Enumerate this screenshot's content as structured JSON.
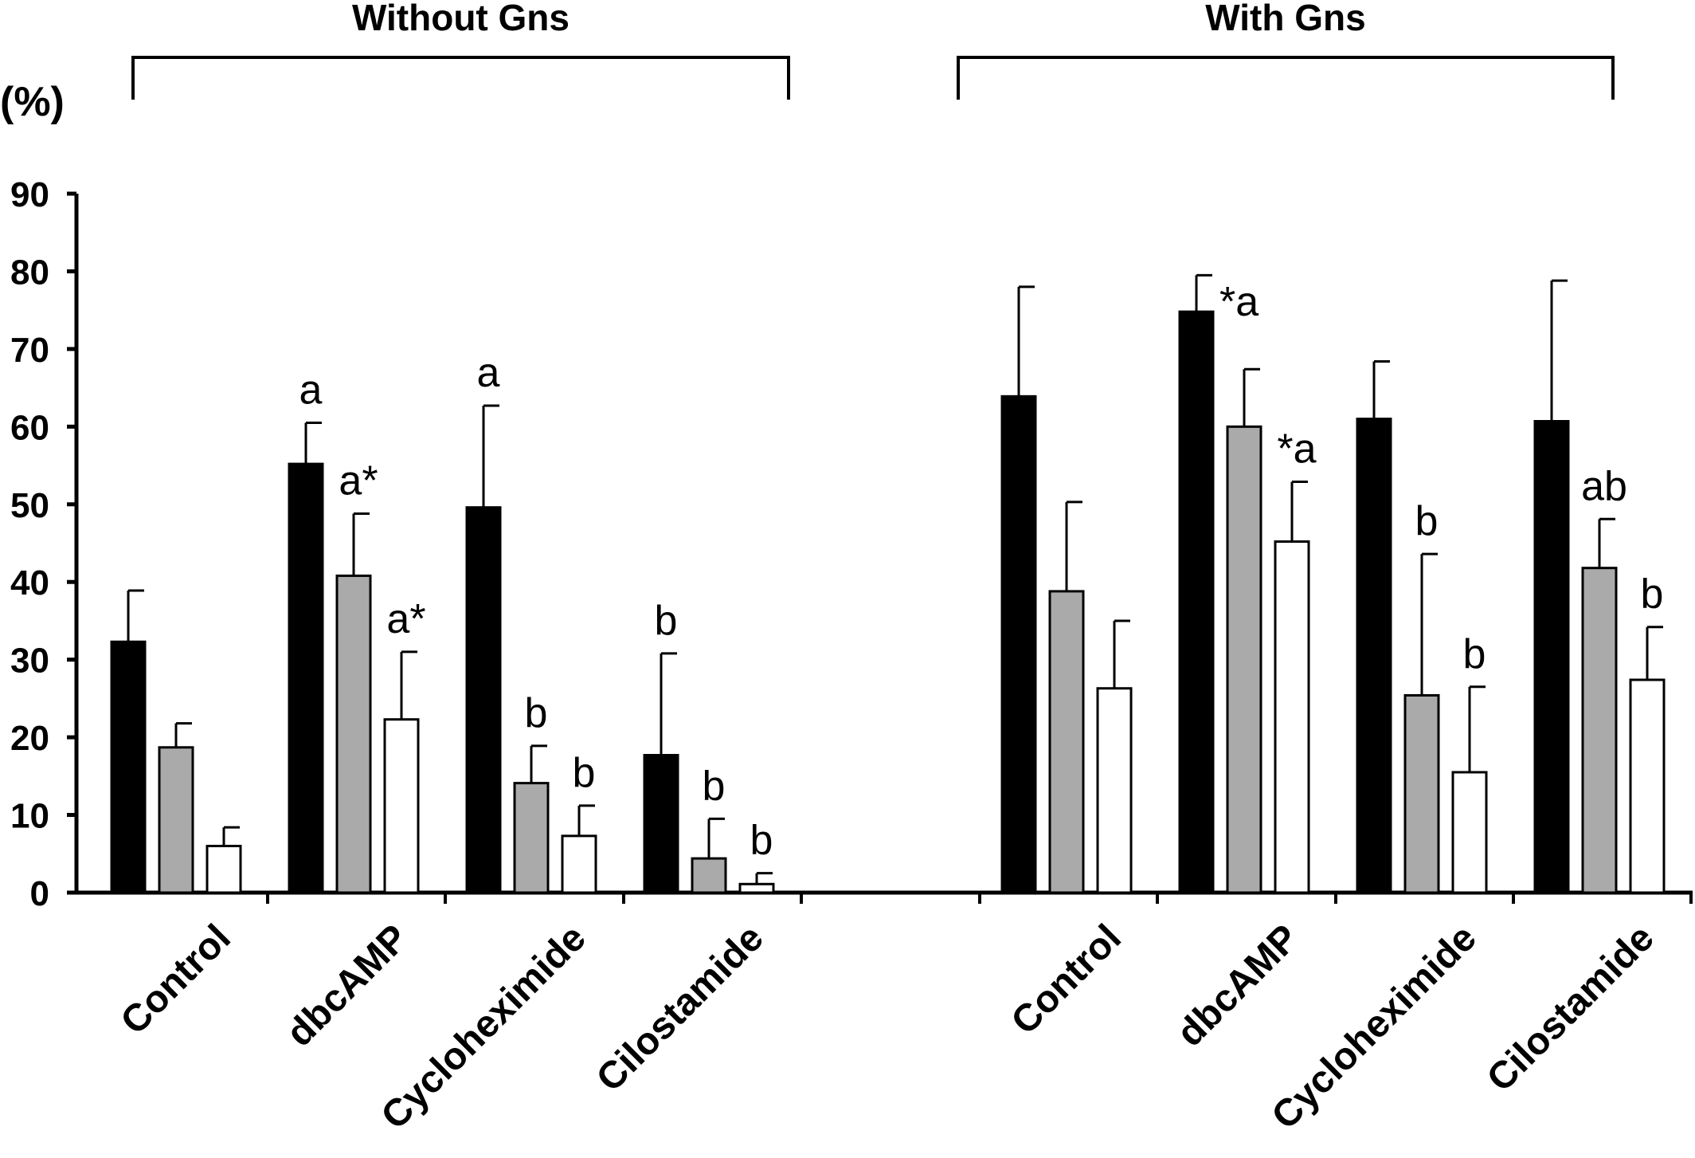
{
  "chart_data": {
    "type": "bar",
    "ylabel": "(%)",
    "ylim": [
      0,
      90
    ],
    "yticks": [
      "0",
      "10",
      "20",
      "30",
      "40",
      "50",
      "60",
      "70",
      "80",
      "90"
    ],
    "grid": false,
    "legend": "none",
    "colors": [
      "#000000",
      "#aaaaaa",
      "#ffffff"
    ],
    "groups": [
      {
        "label": "Without Gns",
        "categories": [
          {
            "name": "Control",
            "values": [
              32.3,
              18.7,
              6.0
            ],
            "errors": [
              6.6,
              3.1,
              2.4
            ],
            "annotations": [
              "",
              "",
              ""
            ]
          },
          {
            "name": "dbcAMP",
            "values": [
              55.2,
              40.8,
              22.3
            ],
            "errors": [
              5.3,
              8.0,
              8.7
            ],
            "annotations": [
              "a",
              "a*",
              "a*"
            ]
          },
          {
            "name": "Cycloheximide",
            "values": [
              49.6,
              14.1,
              7.3
            ],
            "errors": [
              13.1,
              4.8,
              3.9
            ],
            "annotations": [
              "a",
              "b",
              "b"
            ]
          },
          {
            "name": "Cilostamide",
            "values": [
              17.7,
              4.4,
              1.1
            ],
            "errors": [
              13.1,
              5.1,
              1.4
            ],
            "annotations": [
              "b",
              "b",
              "b"
            ]
          }
        ]
      },
      {
        "label": "With Gns",
        "categories": [
          {
            "name": "Control",
            "values": [
              63.9,
              38.8,
              26.3
            ],
            "errors": [
              14.1,
              11.5,
              8.7
            ],
            "annotations": [
              "",
              "",
              ""
            ]
          },
          {
            "name": "dbcAMP",
            "values": [
              74.8,
              60.0,
              45.2
            ],
            "errors": [
              4.7,
              7.4,
              7.7
            ],
            "annotations": [
              "*a",
              "",
              "*a"
            ]
          },
          {
            "name": "Cycloheximide",
            "values": [
              61.0,
              25.4,
              15.5
            ],
            "errors": [
              7.4,
              18.2,
              11.0
            ],
            "annotations": [
              "",
              "b",
              "b"
            ]
          },
          {
            "name": "Cilostamide",
            "values": [
              60.7,
              41.8,
              27.4
            ],
            "errors": [
              18.1,
              6.3,
              6.8
            ],
            "annotations": [
              "",
              "ab",
              "b"
            ]
          }
        ]
      }
    ]
  }
}
